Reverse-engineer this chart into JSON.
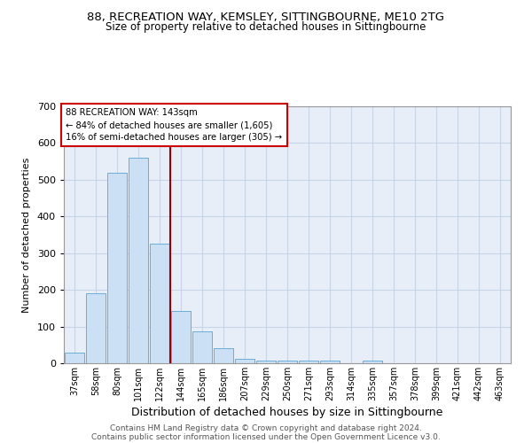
{
  "title_line1": "88, RECREATION WAY, KEMSLEY, SITTINGBOURNE, ME10 2TG",
  "title_line2": "Size of property relative to detached houses in Sittingbourne",
  "xlabel": "Distribution of detached houses by size in Sittingbourne",
  "ylabel": "Number of detached properties",
  "footer_line1": "Contains HM Land Registry data © Crown copyright and database right 2024.",
  "footer_line2": "Contains public sector information licensed under the Open Government Licence v3.0.",
  "categories": [
    "37sqm",
    "58sqm",
    "80sqm",
    "101sqm",
    "122sqm",
    "144sqm",
    "165sqm",
    "186sqm",
    "207sqm",
    "229sqm",
    "250sqm",
    "271sqm",
    "293sqm",
    "314sqm",
    "335sqm",
    "357sqm",
    "378sqm",
    "399sqm",
    "421sqm",
    "442sqm",
    "463sqm"
  ],
  "values": [
    30,
    190,
    520,
    560,
    325,
    143,
    88,
    40,
    13,
    8,
    8,
    8,
    8,
    0,
    7,
    0,
    0,
    0,
    0,
    0,
    0
  ],
  "bar_color": "#cce0f5",
  "bar_edge_color": "#6aaed6",
  "grid_color": "#c8d4e8",
  "bg_color": "#e8eef8",
  "vline_color": "#9b0000",
  "vline_x": 4.5,
  "annotation_text_line1": "88 RECREATION WAY: 143sqm",
  "annotation_text_line2": "← 84% of detached houses are smaller (1,605)",
  "annotation_text_line3": "16% of semi-detached houses are larger (305) →",
  "annotation_box_color": "#cc0000",
  "ylim": [
    0,
    700
  ],
  "yticks": [
    0,
    100,
    200,
    300,
    400,
    500,
    600,
    700
  ]
}
